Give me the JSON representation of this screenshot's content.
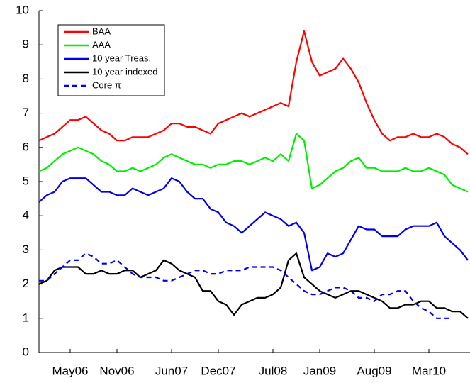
{
  "chart_data": {
    "type": "line",
    "categories": [
      null,
      null,
      null,
      null,
      "May06",
      null,
      null,
      null,
      null,
      null,
      "Nov06",
      null,
      null,
      null,
      null,
      null,
      null,
      "Jun07",
      null,
      null,
      null,
      null,
      null,
      "Dec07",
      null,
      null,
      null,
      null,
      null,
      null,
      "Jul08",
      null,
      null,
      null,
      null,
      null,
      "Jan09",
      null,
      null,
      null,
      null,
      null,
      null,
      "Aug09",
      null,
      null,
      null,
      null,
      null,
      null,
      "Mar10",
      null,
      null,
      null,
      null,
      null
    ],
    "series": [
      {
        "name": "BAA",
        "color": "#ff0000",
        "dashed": false,
        "values": [
          6.2,
          6.3,
          6.4,
          6.6,
          6.8,
          6.8,
          6.9,
          6.7,
          6.5,
          6.4,
          6.2,
          6.2,
          6.3,
          6.3,
          6.3,
          6.4,
          6.5,
          6.7,
          6.7,
          6.6,
          6.6,
          6.5,
          6.4,
          6.7,
          6.8,
          6.9,
          7.0,
          6.9,
          7.0,
          7.1,
          7.2,
          7.3,
          7.2,
          8.5,
          9.4,
          8.5,
          8.1,
          8.2,
          8.3,
          8.6,
          8.3,
          7.9,
          7.3,
          6.8,
          6.4,
          6.2,
          6.3,
          6.3,
          6.4,
          6.3,
          6.3,
          6.4,
          6.3,
          6.1,
          6.0,
          5.8
        ]
      },
      {
        "name": "AAA",
        "color": "#00ee00",
        "dashed": false,
        "values": [
          5.3,
          5.4,
          5.6,
          5.8,
          5.9,
          6.0,
          5.9,
          5.8,
          5.6,
          5.5,
          5.3,
          5.3,
          5.4,
          5.3,
          5.4,
          5.5,
          5.7,
          5.8,
          5.7,
          5.6,
          5.5,
          5.5,
          5.4,
          5.5,
          5.5,
          5.6,
          5.6,
          5.5,
          5.6,
          5.7,
          5.6,
          5.8,
          5.6,
          6.4,
          6.2,
          4.8,
          4.9,
          5.1,
          5.3,
          5.4,
          5.6,
          5.7,
          5.4,
          5.4,
          5.3,
          5.3,
          5.3,
          5.4,
          5.3,
          5.3,
          5.4,
          5.3,
          5.2,
          4.9,
          4.8,
          4.7
        ]
      },
      {
        "name": "10 year Treas.",
        "color": "#0000ee",
        "dashed": false,
        "values": [
          4.4,
          4.6,
          4.7,
          5.0,
          5.1,
          5.1,
          5.1,
          4.9,
          4.7,
          4.7,
          4.6,
          4.6,
          4.8,
          4.7,
          4.6,
          4.7,
          4.8,
          5.1,
          5.0,
          4.7,
          4.5,
          4.5,
          4.2,
          4.1,
          3.8,
          3.7,
          3.5,
          3.7,
          3.9,
          4.1,
          4.0,
          3.9,
          3.7,
          3.8,
          3.5,
          2.4,
          2.5,
          2.9,
          2.8,
          2.9,
          3.3,
          3.7,
          3.6,
          3.6,
          3.4,
          3.4,
          3.4,
          3.6,
          3.7,
          3.7,
          3.7,
          3.8,
          3.4,
          3.2,
          3.0,
          2.7
        ]
      },
      {
        "name": "10 year indexed",
        "color": "#000000",
        "dashed": false,
        "values": [
          2.0,
          2.1,
          2.4,
          2.5,
          2.5,
          2.5,
          2.3,
          2.3,
          2.4,
          2.3,
          2.3,
          2.4,
          2.4,
          2.2,
          2.3,
          2.4,
          2.7,
          2.6,
          2.4,
          2.3,
          2.2,
          1.8,
          1.8,
          1.5,
          1.4,
          1.1,
          1.4,
          1.5,
          1.6,
          1.6,
          1.7,
          1.9,
          2.7,
          2.9,
          2.2,
          2.0,
          1.8,
          1.7,
          1.6,
          1.7,
          1.8,
          1.8,
          1.7,
          1.6,
          1.5,
          1.3,
          1.3,
          1.4,
          1.4,
          1.5,
          1.5,
          1.3,
          1.3,
          1.2,
          1.2,
          1.0
        ]
      },
      {
        "name": "Core π",
        "color": "#0000ee",
        "dashed": true,
        "values": [
          2.1,
          2.1,
          2.3,
          2.5,
          2.7,
          2.7,
          2.9,
          2.8,
          2.6,
          2.6,
          2.7,
          2.5,
          2.3,
          2.2,
          2.2,
          2.2,
          2.1,
          2.1,
          2.2,
          2.3,
          2.4,
          2.4,
          2.3,
          2.3,
          2.4,
          2.4,
          2.4,
          2.5,
          2.5,
          2.5,
          2.5,
          2.4,
          2.2,
          2.0,
          1.8,
          1.7,
          1.7,
          1.8,
          1.9,
          1.9,
          1.8,
          1.6,
          1.6,
          1.5,
          1.7,
          1.7,
          1.8,
          1.8,
          1.5,
          1.3,
          1.2,
          1.0,
          1.0,
          1.0,
          null,
          null
        ]
      }
    ],
    "ylim": [
      0,
      10
    ],
    "yticks": [
      0,
      1,
      2,
      3,
      4,
      5,
      6,
      7,
      8,
      9,
      10
    ],
    "grid": false,
    "legend": "upper left"
  }
}
